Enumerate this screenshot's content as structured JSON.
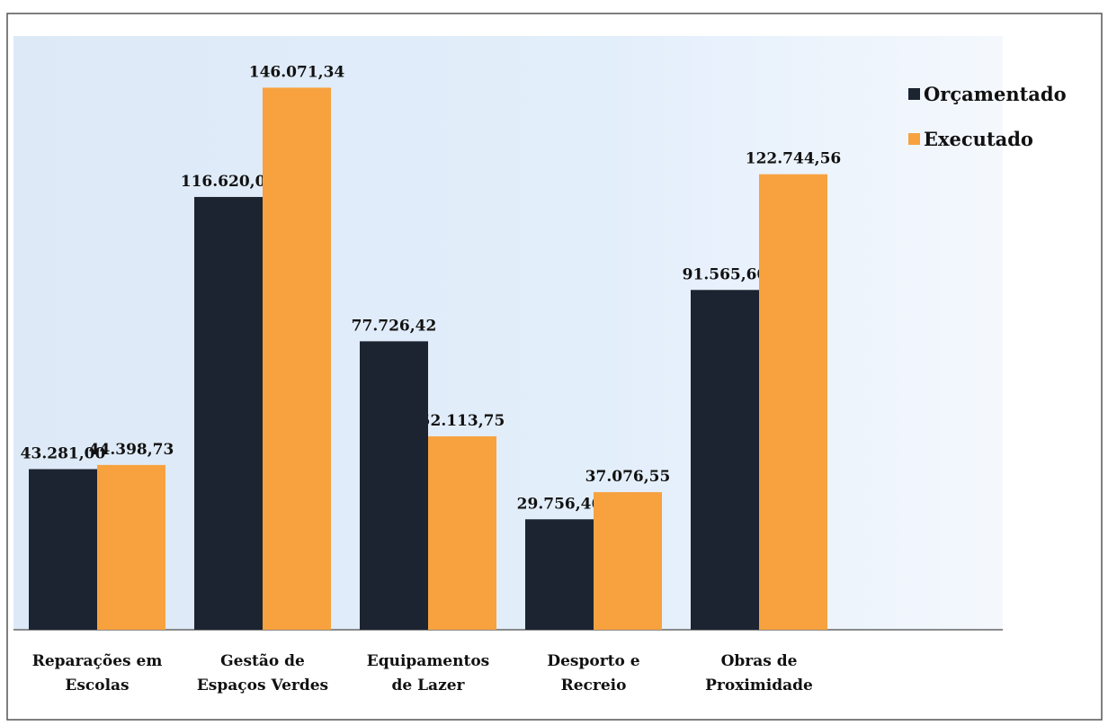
{
  "chart_data": {
    "type": "bar",
    "categories": [
      "Reparações em\nEscolas",
      "Gestão de\nEspaços Verdes",
      "Equipamentos\nde Lazer",
      "Desporto e\nRecreio",
      "Obras de\nProximidade"
    ],
    "series": [
      {
        "name": "Orçamentado",
        "color": "#1d2431",
        "values": [
          43281.0,
          116620.0,
          77726.42,
          29756.46,
          91565.6
        ],
        "value_labels": [
          "43.281,00",
          "116.620,00",
          "77.726,42",
          "29.756,46",
          "91.565,60"
        ]
      },
      {
        "name": "Executado",
        "color": "#f7a23f",
        "values": [
          44398.73,
          146071.34,
          52113.75,
          37076.55,
          122744.56
        ],
        "value_labels": [
          "44.398,73",
          "146.071,34",
          "52.113,75",
          "37.076,55",
          "122.744,56"
        ]
      }
    ],
    "ylim": [
      0,
      160000
    ],
    "legend": "top-right"
  }
}
